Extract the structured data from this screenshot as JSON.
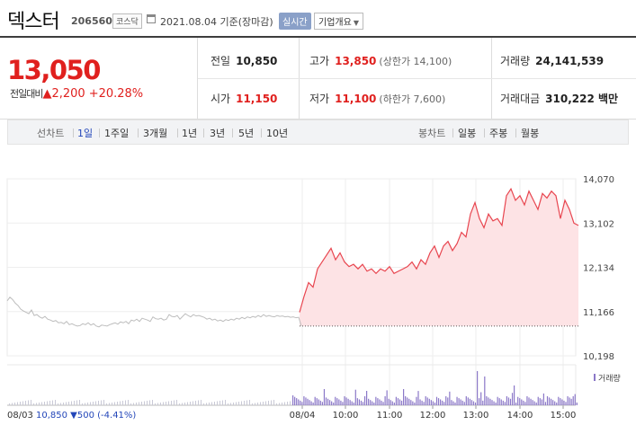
{
  "header": {
    "stock_name": "덱스터",
    "stock_code": "206560",
    "market": "코스닥",
    "base_date": "2021.08.04 기준(장마감)",
    "realtime_button": "실시간",
    "company_info_button": "기업개요",
    "company_info_caret": "▼"
  },
  "quote": {
    "current_price": "13,050",
    "change_label": "전일대비",
    "change_arrow": "▲",
    "change_value": "2,200",
    "change_percent": "+20.28%",
    "prev_close_label": "전일",
    "prev_close": "10,850",
    "high_label": "고가",
    "high": "13,850",
    "upper_limit": "(상한가 14,100)",
    "volume_label": "거래량",
    "volume": "24,141,539",
    "open_label": "시가",
    "open": "11,150",
    "low_label": "저가",
    "low": "11,100",
    "lower_limit": "(하한가 7,600)",
    "amount_label": "거래대금",
    "amount": "310,222 백만"
  },
  "tabs": {
    "line_label": "선차트",
    "line_periods": [
      "1일",
      "1주일",
      "3개월",
      "1년",
      "3년",
      "5년",
      "10년"
    ],
    "selected": "1일",
    "candle_label": "봉차트",
    "candle_periods": [
      "일봉",
      "주봉",
      "월봉"
    ]
  },
  "chart_data": {
    "type": "line",
    "y_ticks": [
      "14,070",
      "13,102",
      "12,134",
      "11,166",
      "10,198"
    ],
    "ylim": [
      10198,
      14070
    ],
    "x_ticks": [
      "08/03",
      "08/04",
      "10:00",
      "11:00",
      "12:00",
      "13:00",
      "14:00",
      "15:00"
    ],
    "prev_day_label": "08/03 10,850 ▼500 (-4.41%)",
    "prev_day_caption": {
      "date": "08/03",
      "close": "10,850",
      "change": "▼500",
      "percent": "(-4.41%)"
    },
    "volume_legend": "거래량",
    "prev_close": 10850,
    "series": [
      {
        "name": "",
        "x": [
          0,
          3,
          6,
          9,
          12,
          15,
          18,
          21,
          24,
          27,
          30,
          33,
          36,
          39,
          42,
          45,
          48,
          51,
          54,
          57,
          60,
          63,
          66,
          69,
          72,
          75,
          78,
          81,
          84,
          87,
          90,
          93,
          96,
          99,
          102,
          105,
          108,
          111,
          114,
          117,
          120,
          123,
          126,
          129,
          132,
          135,
          138,
          141,
          144,
          147,
          150,
          153,
          156,
          159,
          162,
          165,
          168,
          171,
          174,
          177,
          180,
          183,
          186,
          189,
          192,
          195,
          198,
          201,
          204,
          207,
          210,
          213,
          216,
          219,
          222,
          225,
          228,
          231,
          234,
          237,
          240,
          243,
          246,
          249,
          252,
          255,
          258,
          261,
          264,
          267,
          270,
          273,
          276,
          279,
          282,
          285,
          288,
          291,
          294,
          297,
          300,
          303,
          306,
          309,
          312,
          315,
          318,
          321,
          324,
          327
        ],
        "values": [
          11400,
          11480,
          11430,
          11350,
          11300,
          11220,
          11180,
          11150,
          11120,
          11200,
          11080,
          11100,
          11050,
          11020,
          11060,
          11000,
          10980,
          10950,
          10970,
          10920,
          10930,
          10900,
          10950,
          10880,
          10900,
          10870,
          10850,
          10860,
          10900,
          10880,
          10920,
          10870,
          10900,
          10850,
          10830,
          10870,
          10860,
          10850,
          10880,
          10900,
          10920,
          10890,
          10940,
          10920,
          10950,
          10900,
          10980,
          10960,
          11000,
          10950,
          11020,
          11000,
          10980,
          10950,
          11050,
          11010,
          11000,
          11020,
          10980,
          11000,
          11100,
          11060,
          11050,
          11080,
          11000,
          11060,
          11120,
          11080,
          11050,
          11100,
          11070,
          11080,
          11060,
          11040,
          11000,
          11020,
          10980,
          11000,
          10960,
          10980,
          10950,
          10990,
          10970,
          11000,
          10980,
          11020,
          11000,
          11040,
          11010,
          11050,
          11030,
          11060,
          11040,
          11080,
          11050,
          11100,
          11060,
          11080,
          11060,
          11050,
          11080,
          11060,
          11070,
          11050,
          11060,
          11040,
          11050,
          11030,
          11040,
          10850
        ]
      },
      {
        "name": "",
        "x": [
          325,
          330,
          335,
          340,
          345,
          350,
          355,
          360,
          365,
          370,
          375,
          380,
          385,
          390,
          395,
          400,
          405,
          410,
          415,
          420,
          425,
          430,
          435,
          440,
          445,
          450,
          455,
          460,
          465,
          470,
          475,
          480,
          485,
          490,
          495,
          500,
          505,
          510,
          515,
          520,
          525,
          530,
          535,
          540,
          545,
          550,
          555,
          560,
          565,
          570,
          575,
          580,
          585,
          590,
          595,
          600,
          605,
          610,
          615,
          620,
          625,
          630,
          635
        ],
        "values": [
          11150,
          11500,
          11800,
          11700,
          12100,
          12250,
          12400,
          12550,
          12300,
          12450,
          12250,
          12150,
          12200,
          12100,
          12200,
          12050,
          12100,
          12000,
          12100,
          12050,
          12150,
          12000,
          12050,
          12100,
          12150,
          12250,
          12100,
          12300,
          12200,
          12450,
          12600,
          12350,
          12600,
          12700,
          12500,
          12650,
          12900,
          12800,
          13300,
          13550,
          13200,
          13000,
          13300,
          13150,
          13200,
          13050,
          13700,
          13850,
          13600,
          13700,
          13500,
          13800,
          13600,
          13400,
          13750,
          13650,
          13800,
          13700,
          13200,
          13600,
          13400,
          13100,
          13050
        ]
      }
    ]
  }
}
